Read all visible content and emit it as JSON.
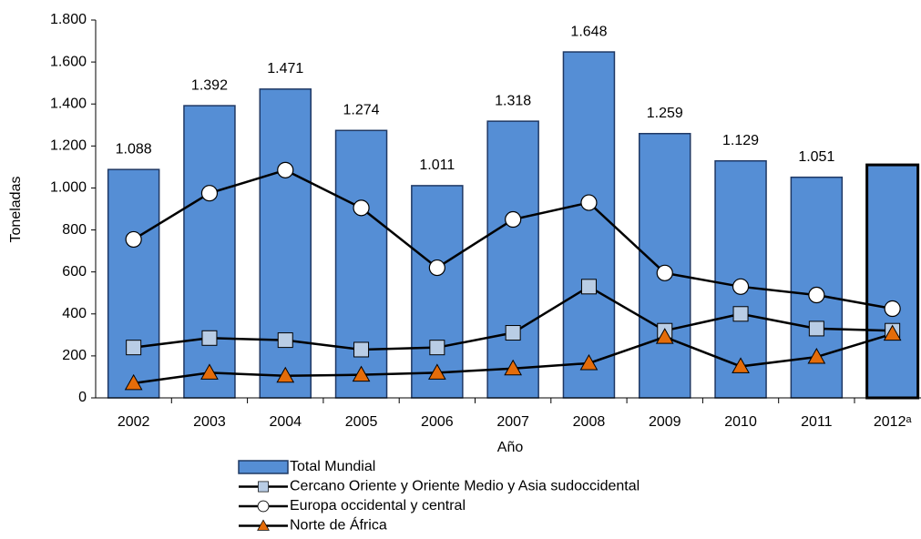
{
  "chart_data": {
    "type": "bar",
    "xlabel": "Año",
    "ylabel": "Toneladas",
    "categories": [
      "2002",
      "2003",
      "2004",
      "2005",
      "2006",
      "2007",
      "2008",
      "2009",
      "2010",
      "2011",
      "2012ᵃ"
    ],
    "values": [
      1088,
      1392,
      1471,
      1274,
      1011,
      1318,
      1648,
      1259,
      1129,
      1051,
      1110
    ],
    "value_labels": [
      "1.088",
      "1.392",
      "1.471",
      "1.274",
      "1.011",
      "1.318",
      "1.648",
      "1.259",
      "1.129",
      "1.051",
      null
    ],
    "name": "Total Mundial",
    "color": "#558ed5",
    "edgecolors": [
      "#1f3864",
      "#1f3864",
      "#1f3864",
      "#1f3864",
      "#1f3864",
      "#1f3864",
      "#1f3864",
      "#1f3864",
      "#1f3864",
      "#1f3864",
      "#000000"
    ],
    "series": [
      {
        "name": "Cercano Oriente y Oriente Medio y Asia sudoccidental",
        "color": "#b9cde5",
        "marker": "square",
        "values": [
          240,
          285,
          275,
          230,
          240,
          310,
          530,
          320,
          400,
          330,
          320
        ]
      },
      {
        "name": "Europa occidental y central",
        "color": "#ffffff",
        "marker": "circle",
        "values": [
          755,
          975,
          1085,
          905,
          620,
          850,
          930,
          595,
          530,
          490,
          425
        ]
      },
      {
        "name": "Norte de África",
        "color": "#e46c0a",
        "marker": "triangle",
        "values": [
          70,
          120,
          105,
          110,
          120,
          140,
          165,
          290,
          150,
          195,
          305
        ]
      }
    ],
    "ylim": [
      0,
      1800
    ],
    "yticks": [
      0,
      200,
      400,
      600,
      800,
      {
        "value": 1000,
        "label": "1.000"
      },
      {
        "value": 1200,
        "label": "1.200"
      },
      {
        "value": 1400,
        "label": "1.400"
      },
      {
        "value": 1600,
        "label": "1.600"
      },
      {
        "value": 1800,
        "label": "1.800"
      }
    ],
    "grid": false,
    "legend": "bottom"
  }
}
